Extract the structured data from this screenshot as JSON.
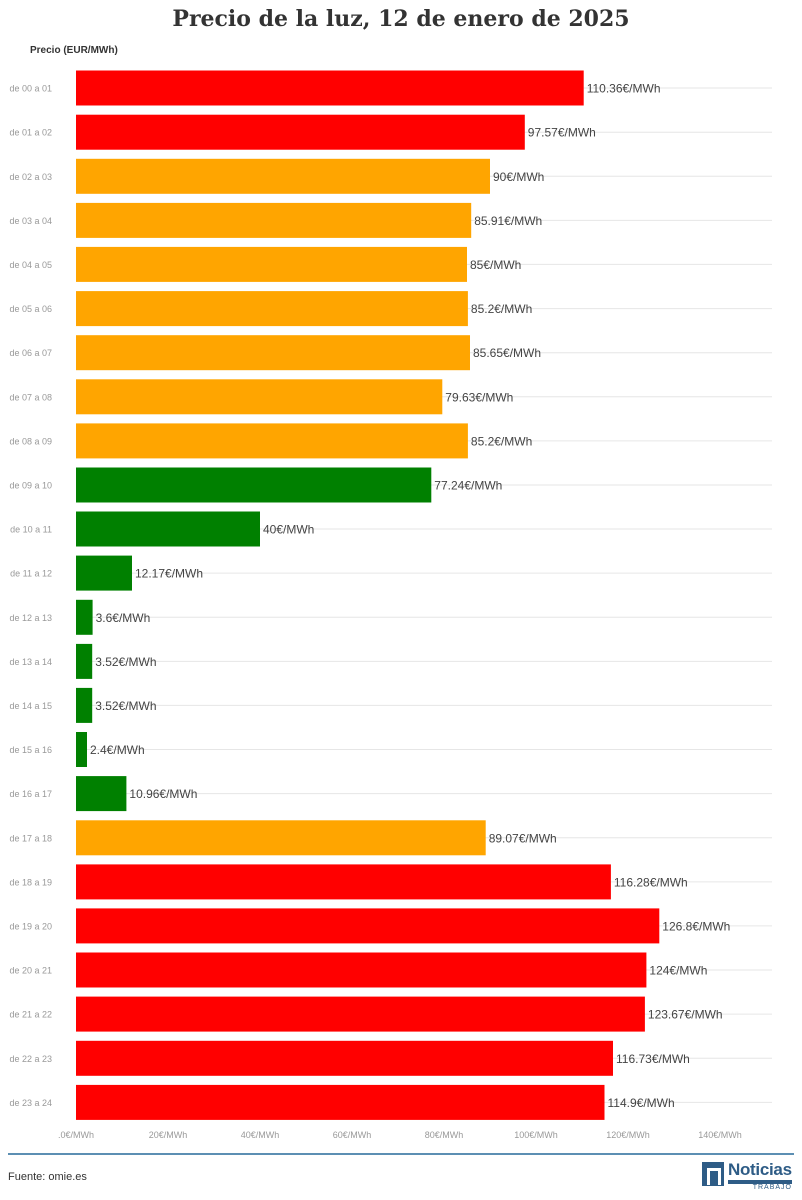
{
  "title": "Precio de la luz, 12 de enero de 2025",
  "source": "Fuente: omie.es",
  "logo": {
    "name": "Noticias",
    "sub": "TRABAJO",
    "color": "#2e5c86"
  },
  "colors": {
    "high": "#ff0000",
    "medium": "#ffa500",
    "low": "#008000",
    "axis_text": "#999999",
    "label_text": "#444444",
    "grid": "#e6e6e6"
  },
  "chart_data": {
    "type": "bar",
    "orientation": "horizontal",
    "title": "Precio de la luz, 12 de enero de 2025",
    "ylabel": "Precio (EUR/MWh)",
    "xlabel": "",
    "xlim": [
      0,
      140
    ],
    "x_ticks": [
      ".0€/MWh",
      "20€/MWh",
      "40€/MWh",
      "60€/MWh",
      "80€/MWh",
      "100€/MWh",
      "120€/MWh",
      "140€/MWh"
    ],
    "x_tick_values": [
      0,
      20,
      40,
      60,
      80,
      100,
      120,
      140
    ],
    "grid": true,
    "categories": [
      "de 00 a 01",
      "de 01 a 02",
      "de 02 a 03",
      "de 03 a 04",
      "de 04 a 05",
      "de 05 a 06",
      "de 06 a 07",
      "de 07 a 08",
      "de 08 a 09",
      "de 09 a 10",
      "de 10 a 11",
      "de 11 a 12",
      "de 12 a 13",
      "de 13 a 14",
      "de 14 a 15",
      "de 15 a 16",
      "de 16 a 17",
      "de 17 a 18",
      "de 18 a 19",
      "de 19 a 20",
      "de 20 a 21",
      "de 21 a 22",
      "de 22 a 23",
      "de 23 a 24"
    ],
    "values": [
      110.36,
      97.57,
      90,
      85.91,
      85,
      85.2,
      85.65,
      79.63,
      85.2,
      77.24,
      40,
      12.17,
      3.6,
      3.52,
      3.52,
      2.4,
      10.96,
      89.07,
      116.28,
      126.8,
      124,
      123.67,
      116.73,
      114.9
    ],
    "labels": [
      "110.36€/MWh",
      "97.57€/MWh",
      "90€/MWh",
      "85.91€/MWh",
      "85€/MWh",
      "85.2€/MWh",
      "85.65€/MWh",
      "79.63€/MWh",
      "85.2€/MWh",
      "77.24€/MWh",
      "40€/MWh",
      "12.17€/MWh",
      "3.6€/MWh",
      "3.52€/MWh",
      "3.52€/MWh",
      "2.4€/MWh",
      "10.96€/MWh",
      "89.07€/MWh",
      "116.28€/MWh",
      "126.8€/MWh",
      "124€/MWh",
      "123.67€/MWh",
      "116.73€/MWh",
      "114.9€/MWh"
    ],
    "bar_colors": [
      "high",
      "high",
      "medium",
      "medium",
      "medium",
      "medium",
      "medium",
      "medium",
      "medium",
      "low",
      "low",
      "low",
      "low",
      "low",
      "low",
      "low",
      "low",
      "medium",
      "high",
      "high",
      "high",
      "high",
      "high",
      "high"
    ]
  }
}
